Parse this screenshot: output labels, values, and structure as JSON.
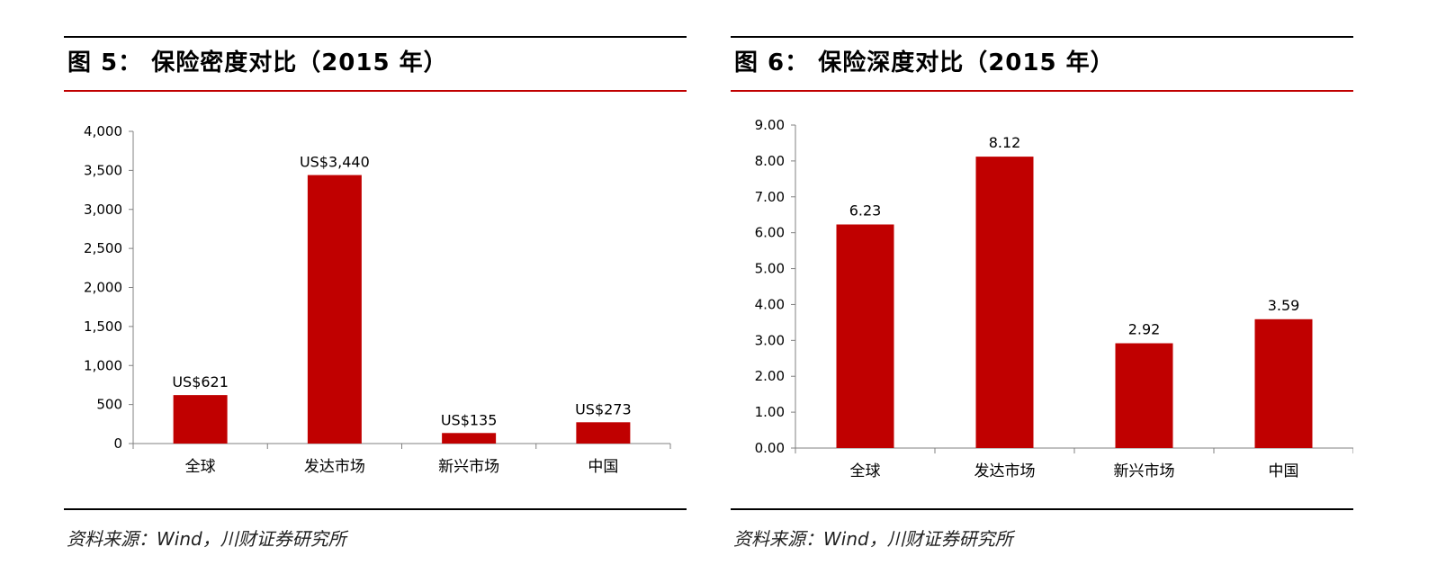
{
  "panels": [
    {
      "title": "图 5： 保险密度对比（2015 年）",
      "source": "资料来源：Wind，川财证券研究所",
      "chart_data": {
        "type": "bar",
        "categories": [
          "全球",
          "发达市场",
          "新兴市场",
          "中国"
        ],
        "values": [
          621,
          3440,
          135,
          273
        ],
        "data_labels": [
          "US$621",
          "US$3,440",
          "US$135",
          "US$273"
        ],
        "ylim": [
          0,
          4000
        ],
        "yticks": [
          0,
          500,
          1000,
          1500,
          2000,
          2500,
          3000,
          3500,
          4000
        ],
        "ytick_labels": [
          "0",
          "500",
          "1,000",
          "1,500",
          "2,000",
          "2,500",
          "3,000",
          "3,500",
          "4,000"
        ],
        "bar_color": "#c00000",
        "grid": false,
        "legend": "none"
      }
    },
    {
      "title": "图 6： 保险深度对比（2015 年）",
      "source": "资料来源：Wind，川财证券研究所",
      "chart_data": {
        "type": "bar",
        "categories": [
          "全球",
          "发达市场",
          "新兴市场",
          "中国"
        ],
        "values": [
          6.23,
          8.12,
          2.92,
          3.59
        ],
        "data_labels": [
          "6.23",
          "8.12",
          "2.92",
          "3.59"
        ],
        "ylim": [
          0,
          9
        ],
        "yticks": [
          0,
          1,
          2,
          3,
          4,
          5,
          6,
          7,
          8,
          9
        ],
        "ytick_labels": [
          "0.00",
          "1.00",
          "2.00",
          "3.00",
          "4.00",
          "5.00",
          "6.00",
          "7.00",
          "8.00",
          "9.00"
        ],
        "bar_color": "#c00000",
        "grid": false,
        "legend": "none"
      }
    }
  ]
}
